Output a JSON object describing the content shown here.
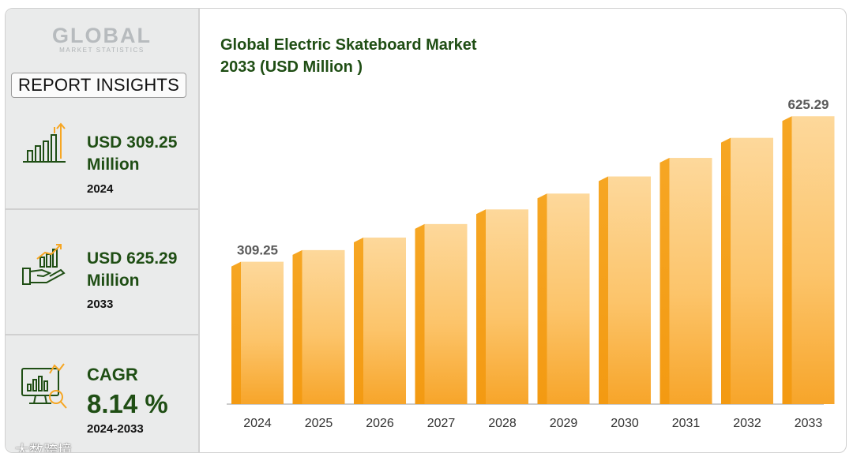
{
  "sidebar": {
    "logo_main": "GLOBAL",
    "logo_sub": "MARKET STATISTICS",
    "report_insights": "REPORT INSIGHTS",
    "card1": {
      "value": "USD 309.25",
      "unit": "Million",
      "year": "2024",
      "icon": "bar-growth-icon"
    },
    "card2": {
      "value": "USD 625.29",
      "unit": "Million",
      "year": "2033",
      "icon": "hand-growth-icon"
    },
    "card3": {
      "label": "CAGR",
      "value": "8.14 %",
      "period": "2024-2033",
      "icon": "monitor-analytics-icon"
    }
  },
  "watermark": "大数跨境",
  "colors": {
    "accent_green": "#1f4e14",
    "bar_light": "#fdd89a",
    "bar_dark": "#f6a623"
  },
  "chart_data": {
    "type": "bar",
    "title": "Global Electric Skateboard Market 2033 (USD Million )",
    "title_line1": "Global Electric Skateboard Market",
    "title_line2": "2033 (USD Million )",
    "categories": [
      "2024",
      "2025",
      "2026",
      "2027",
      "2028",
      "2029",
      "2030",
      "2031",
      "2032",
      "2033"
    ],
    "values": [
      309.25,
      334.5,
      361.7,
      391.1,
      422.9,
      457.3,
      494.5,
      534.8,
      578.3,
      625.29
    ],
    "data_labels": [
      {
        "index": 0,
        "text": "309.25"
      },
      {
        "index": 9,
        "text": "625.29"
      }
    ],
    "ylim": [
      0,
      660
    ],
    "grid": false,
    "xlabel": "",
    "ylabel": ""
  }
}
